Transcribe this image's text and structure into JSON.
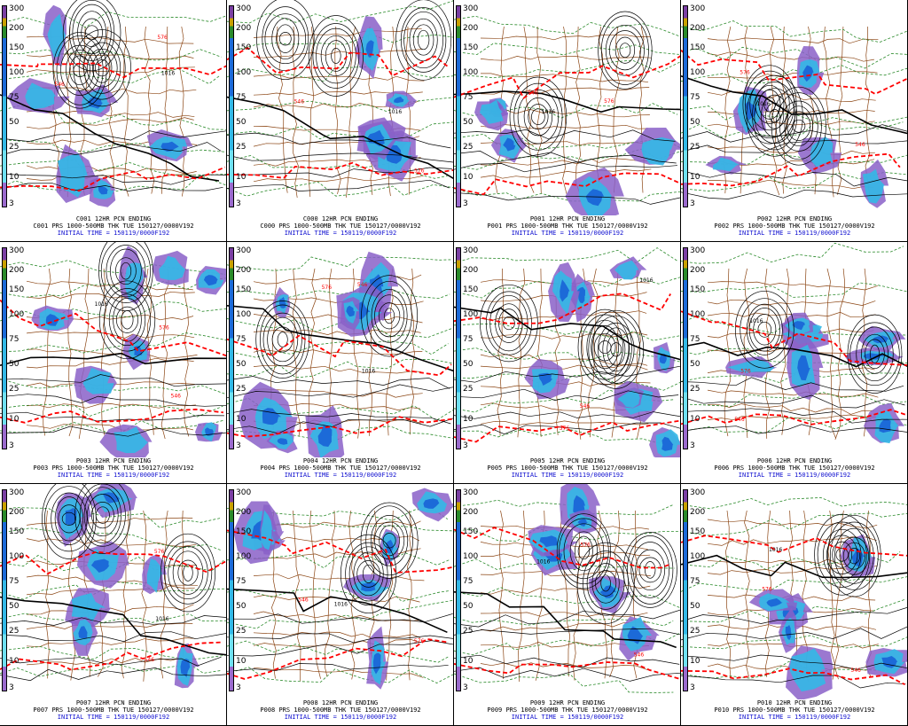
{
  "scale_ticks": [
    "300",
    "200",
    "150",
    "100",
    "75",
    "50",
    "25",
    "10",
    "3"
  ],
  "colors": {
    "thickness_546": "#ff0000",
    "thickness_other": "#2a8a2a",
    "pressure": "#000000",
    "borders": "#8b4513",
    "precip_light": "#8a60c8",
    "precip_mid": "#33b8e6",
    "precip_heavy": "#1c6ad8",
    "caption_time": "#1010d0"
  },
  "map_labels": [
    "1016",
    "576",
    "546"
  ],
  "panels": [
    {
      "member": "C001",
      "header": "C001 12HR PCN ENDING",
      "caption": "C001 PRS 1000-500MB THK TUE 150127/0000V192",
      "time": "INITIAL TIME = 150119/0000F192"
    },
    {
      "member": "C000",
      "header": "C000 12HR PCN ENDING",
      "caption": "C000 PRS 1000-500MB THK TUE 150127/0000V192",
      "time": "INITIAL TIME = 150119/0000F192"
    },
    {
      "member": "P001",
      "header": "P001 12HR PCN ENDING",
      "caption": "P001 PRS 1000-500MB THK TUE 150127/0000V192",
      "time": "INITIAL TIME = 150119/0000F192"
    },
    {
      "member": "P002",
      "header": "P002 12HR PCN ENDING",
      "caption": "P002 PRS 1000-500MB THK TUE 150127/0000V192",
      "time": "INITIAL TIME = 150119/0000F192"
    },
    {
      "member": "P003",
      "header": "P003 12HR PCN ENDING",
      "caption": "P003 PRS 1000-500MB THK TUE 150127/0000V192",
      "time": "INITIAL TIME = 150119/0000F192"
    },
    {
      "member": "P004",
      "header": "P004 12HR PCN ENDING",
      "caption": "P004 PRS 1000-500MB THK TUE 150127/0000V192",
      "time": "INITIAL TIME = 150119/0000F192"
    },
    {
      "member": "P005",
      "header": "P005 12HR PCN ENDING",
      "caption": "P005 PRS 1000-500MB THK TUE 150127/0000V192",
      "time": "INITIAL TIME = 150119/0000F192"
    },
    {
      "member": "P006",
      "header": "P006 12HR PCN ENDING",
      "caption": "P006 PRS 1000-500MB THK TUE 150127/0000V192",
      "time": "INITIAL TIME = 150119/0000F192"
    },
    {
      "member": "P007",
      "header": "P007 12HR PCN ENDING",
      "caption": "P007 PRS 1000-500MB THK TUE 150127/0000V192",
      "time": "INITIAL TIME = 150119/0000F192"
    },
    {
      "member": "P008",
      "header": "P008 12HR PCN ENDING",
      "caption": "P008 PRS 1000-500MB THK TUE 150127/0000V192",
      "time": "INITIAL TIME = 150119/0000F192"
    },
    {
      "member": "P009",
      "header": "P009 12HR PCN ENDING",
      "caption": "P009 PRS 1000-500MB THK TUE 150127/0000V192",
      "time": "INITIAL TIME = 150119/0000F192"
    },
    {
      "member": "P010",
      "header": "P010 12HR PCN ENDING",
      "caption": "P010 PRS 1000-500MB THK TUE 150127/0000V192",
      "time": "INITIAL TIME = 150119/0000F192"
    }
  ]
}
